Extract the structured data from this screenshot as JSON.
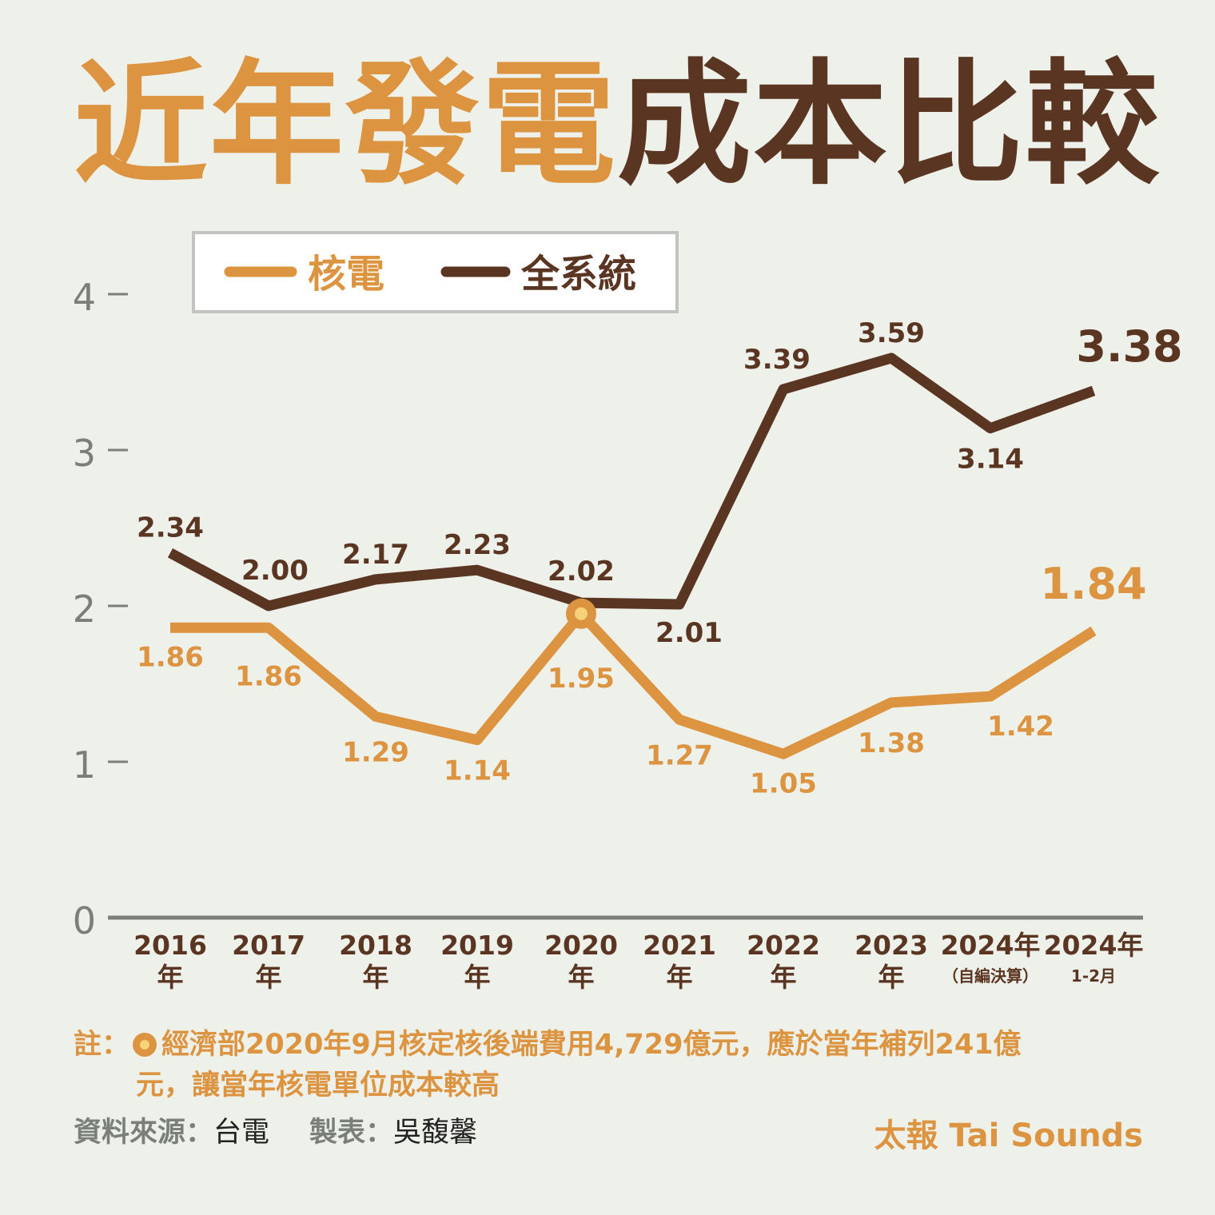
{
  "title": {
    "highlight": "近年發電",
    "rest": "成本比較"
  },
  "colors": {
    "nuclear": "#dc9440",
    "system": "#5a3522",
    "axis": "#7b7f7a",
    "marker_inner": "#f6d27a",
    "background": "#eef0ea"
  },
  "legend": {
    "items": [
      "核電",
      "全系統"
    ]
  },
  "chart_data": {
    "type": "line",
    "categories": [
      [
        "2016",
        "年"
      ],
      [
        "2017",
        "年"
      ],
      [
        "2018",
        "年"
      ],
      [
        "2019",
        "年"
      ],
      [
        "2020",
        "年"
      ],
      [
        "2021",
        "年"
      ],
      [
        "2022",
        "年"
      ],
      [
        "2023",
        "年"
      ],
      [
        "2024年",
        "（自編決算）"
      ],
      [
        "2024年",
        "1-2月"
      ]
    ],
    "series": [
      {
        "name": "核電",
        "color": "#dc9440",
        "values": [
          1.86,
          1.86,
          1.29,
          1.14,
          1.95,
          1.27,
          1.05,
          1.38,
          1.42,
          1.84
        ]
      },
      {
        "name": "全系統",
        "color": "#5a3522",
        "values": [
          2.34,
          2.0,
          2.17,
          2.23,
          2.02,
          2.01,
          3.39,
          3.59,
          3.14,
          3.38
        ]
      }
    ],
    "value_labels": {
      "核電": [
        "1.86",
        "1.86",
        "1.29",
        "1.14",
        "1.95",
        "1.27",
        "1.05",
        "1.38",
        "1.42",
        "1.84"
      ],
      "全系統": [
        "2.34",
        "2.00",
        "2.17",
        "2.23",
        "2.02",
        "2.01",
        "3.39",
        "3.59",
        "3.14",
        "3.38"
      ]
    },
    "yticks": [
      "0",
      "1",
      "2",
      "3",
      "4"
    ],
    "ylim": [
      0,
      4
    ],
    "highlight_point": {
      "series": "核電",
      "category_index": 4
    },
    "grid": false,
    "legend_position": "top-left"
  },
  "note": {
    "label": "註：",
    "line1": "經濟部2020年9月核定核後端費用4,729億元，應於當年補列241億",
    "line2": "元，讓當年核電單位成本較高"
  },
  "source": {
    "data_label": "資料來源：",
    "data_value": "台電",
    "maker_label": "製表：",
    "maker_value": "吳馥馨"
  },
  "brand": "太報 Tai Sounds"
}
